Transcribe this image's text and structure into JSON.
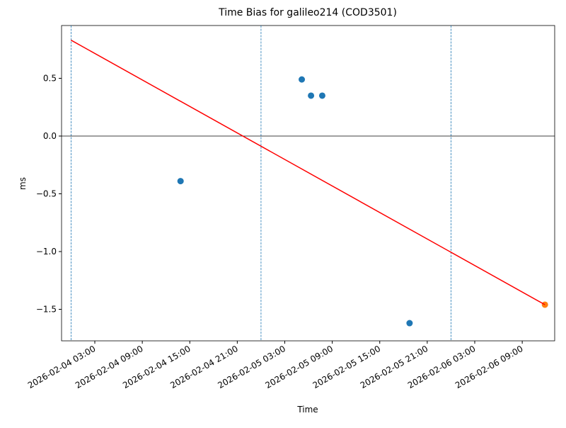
{
  "chart_data": {
    "type": "scatter",
    "title": "Time Bias for galileo214 (COD3501)",
    "xlabel": "Time",
    "ylabel": "ms",
    "xlim": [
      "2026-02-03 22:48",
      "2026-02-06 13:06"
    ],
    "xticks": [
      "2026-02-04 03:00",
      "2026-02-04 09:00",
      "2026-02-04 15:00",
      "2026-02-04 21:00",
      "2026-02-05 03:00",
      "2026-02-05 09:00",
      "2026-02-05 15:00",
      "2026-02-05 21:00",
      "2026-02-06 03:00",
      "2026-02-06 09:00"
    ],
    "ylim": [
      -1.773,
      0.957
    ],
    "yticks": [
      {
        "value": -1.5,
        "label": "−1.5"
      },
      {
        "value": -1.0,
        "label": "−1.0"
      },
      {
        "value": -0.5,
        "label": "−0.5"
      },
      {
        "value": 0,
        "label": "0.0"
      },
      0.5
    ],
    "hline": 0,
    "vlines": [
      "2026-02-04 00:00",
      "2026-02-05 00:00",
      "2026-02-06 00:00"
    ],
    "vline_color": "#1f77b4",
    "series": [
      {
        "type": "scatter",
        "color": "#1f77b4",
        "x": [
          "2026-02-04 13:50",
          "2026-02-05 05:09",
          "2026-02-05 06:19",
          "2026-02-05 07:44",
          "2026-02-05 18:46"
        ],
        "values": [
          -0.39,
          0.49,
          0.35,
          0.35,
          -1.62
        ]
      },
      {
        "type": "scatter",
        "color": "#ff7f0e",
        "x": [
          "2026-02-06 11:52"
        ],
        "values": [
          -1.46
        ]
      },
      {
        "type": "line",
        "color": "#ff0000",
        "x": [
          "2026-02-04 00:00",
          "2026-02-06 11:52"
        ],
        "values": [
          0.83,
          -1.46
        ]
      }
    ]
  }
}
